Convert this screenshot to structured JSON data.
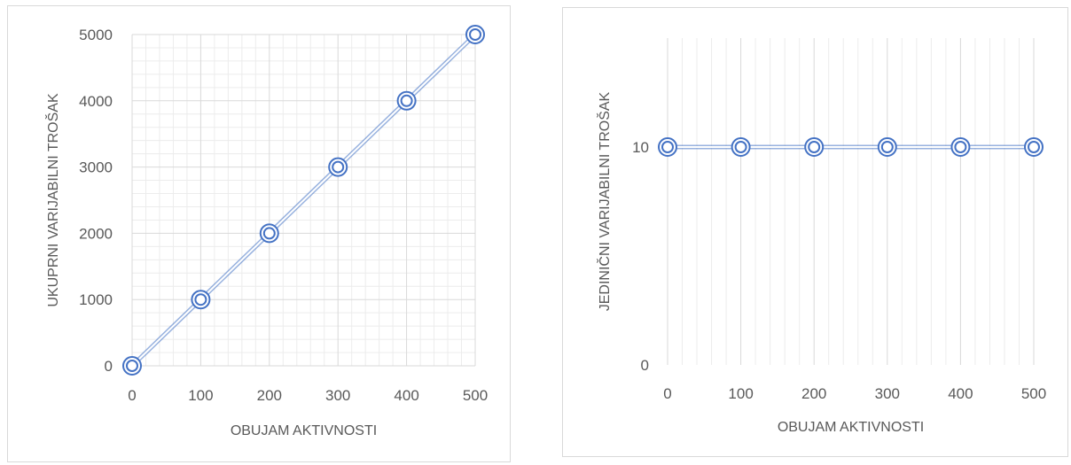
{
  "chart_data": [
    {
      "type": "line",
      "xlabel": "OBUJAM AKTIVNOSTI",
      "ylabel": "UKUPRNI VARIJABILNI TROŠAK",
      "x": [
        0,
        100,
        200,
        300,
        400,
        500
      ],
      "xticks": [
        "0",
        "100",
        "200",
        "300",
        "400",
        "500"
      ],
      "yticks": [
        "0",
        "1000",
        "2000",
        "3000",
        "4000",
        "5000"
      ],
      "xlim": [
        0,
        500
      ],
      "ylim": [
        0,
        5000
      ],
      "grid": "major and minor",
      "series": [
        {
          "values": [
            0,
            1000,
            2000,
            3000,
            4000,
            5000
          ]
        }
      ],
      "color": "#4472c4"
    },
    {
      "type": "line",
      "xlabel": "OBUJAM AKTIVNOSTI",
      "ylabel": "JEDINIČNI VARIJABILNI TROŠAK",
      "x": [
        0,
        100,
        200,
        300,
        400,
        500
      ],
      "xticks": [
        "0",
        "100",
        "200",
        "300",
        "400",
        "500"
      ],
      "yticks": [
        "0",
        "10"
      ],
      "xlim": [
        0,
        500
      ],
      "ylim": [
        0,
        15
      ],
      "grid": "vertical major and minor",
      "series": [
        {
          "values": [
            10,
            10,
            10,
            10,
            10,
            10
          ]
        }
      ],
      "color": "#4472c4"
    }
  ]
}
